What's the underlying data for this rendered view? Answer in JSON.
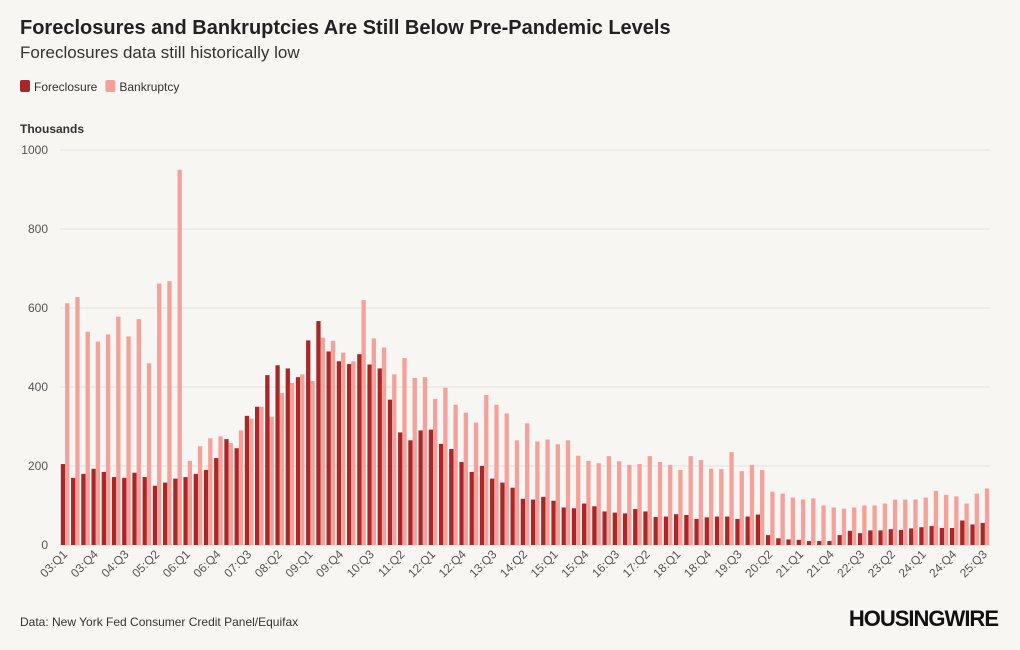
{
  "chart_data": {
    "type": "bar",
    "title": "Foreclosures and Bankruptcies Are Still Below Pre-Pandemic Levels",
    "subtitle": "Foreclosures data still historically low",
    "y_axis_label": "Thousands",
    "source": "Data: New York Fed Consumer Credit Panel/Equifax",
    "brand": "HOUSINGWIRE",
    "categories": [
      "03:Q1",
      null,
      null,
      "03:Q4",
      null,
      null,
      "04:Q3",
      null,
      null,
      "05:Q2",
      null,
      null,
      "06:Q1",
      null,
      null,
      "06:Q4",
      null,
      null,
      "07:Q3",
      null,
      null,
      "08:Q2",
      null,
      null,
      "09:Q1",
      null,
      null,
      "09:Q4",
      null,
      null,
      "10:Q3",
      null,
      null,
      "11:Q2",
      null,
      null,
      "12:Q1",
      null,
      null,
      "12:Q4",
      null,
      null,
      "13:Q3",
      null,
      null,
      "14:Q2",
      null,
      null,
      "15:Q1",
      null,
      null,
      "15:Q4",
      null,
      null,
      "16:Q3",
      null,
      null,
      "17:Q2",
      null,
      null,
      "18:Q1",
      null,
      null,
      "18:Q4",
      null,
      null,
      "19:Q3",
      null,
      null,
      "20:Q2",
      null,
      null,
      "21:Q1",
      null,
      null,
      "21:Q4",
      null,
      null,
      "22:Q3",
      null,
      null,
      "23:Q2",
      null,
      null,
      "24:Q1",
      null,
      null,
      "24:Q4",
      null,
      null,
      "25:Q3"
    ],
    "series": [
      {
        "name": "Foreclosure",
        "color": "#a8282a",
        "values": [
          205,
          170,
          180,
          193,
          185,
          172,
          170,
          183,
          172,
          150,
          158,
          168,
          172,
          180,
          190,
          220,
          268,
          245,
          327,
          350,
          430,
          455,
          447,
          425,
          518,
          567,
          490,
          465,
          458,
          483,
          457,
          447,
          368,
          285,
          265,
          290,
          292,
          256,
          243,
          210,
          185,
          200,
          168,
          158,
          145,
          117,
          115,
          122,
          112,
          95,
          93,
          105,
          98,
          85,
          82,
          80,
          91,
          85,
          71,
          72,
          78,
          76,
          66,
          70,
          72,
          72,
          66,
          72,
          77,
          25,
          17,
          14,
          13,
          10,
          10,
          10,
          25,
          36,
          30,
          37,
          37,
          40,
          38,
          42,
          45,
          48,
          43,
          43,
          62,
          52,
          56
        ]
      },
      {
        "name": "Bankruptcy",
        "color": "#f4a09b",
        "values": [
          612,
          628,
          540,
          515,
          533,
          578,
          528,
          572,
          460,
          662,
          668,
          950,
          213,
          250,
          270,
          275,
          258,
          290,
          320,
          350,
          325,
          385,
          410,
          432,
          415,
          525,
          517,
          487,
          465,
          620,
          523,
          500,
          432,
          473,
          423,
          425,
          370,
          398,
          355,
          335,
          310,
          380,
          355,
          333,
          265,
          308,
          262,
          267,
          255,
          265,
          226,
          213,
          207,
          225,
          212,
          203,
          205,
          225,
          210,
          203,
          190,
          225,
          215,
          193,
          192,
          235,
          187,
          203,
          190,
          135,
          130,
          120,
          115,
          118,
          100,
          95,
          92,
          95,
          100,
          100,
          105,
          115,
          115,
          115,
          120,
          137,
          127,
          123,
          105,
          130,
          143
        ]
      }
    ],
    "ylim": [
      0,
      1000
    ],
    "yticks": [
      0,
      200,
      400,
      600,
      800,
      1000
    ],
    "grid": true
  }
}
